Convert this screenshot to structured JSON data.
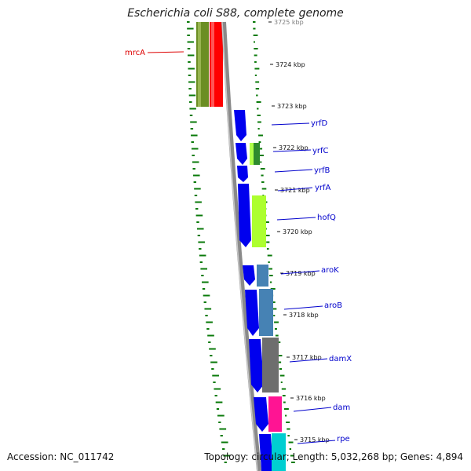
{
  "title": "Escherichia coli S88, complete genome",
  "accession": "Accession: NC_011742",
  "summary": "Topology: circular; Length: 5,032,268 bp; Genes: 4,894",
  "colors": {
    "forward_gene": "#0000ee",
    "label_line": "#0000cc",
    "highlight_label": "#dd0000",
    "backbone": "#8a8a8a",
    "gc_ticks": "#0a7a0a"
  },
  "position_ticks": [
    "3725 kbp",
    "3724 kbp",
    "3723 kbp",
    "3722 kbp",
    "3721 kbp",
    "3720 kbp",
    "3719 kbp",
    "3718 kbp",
    "3717 kbp",
    "3716 kbp",
    "3715 kbp"
  ],
  "gene_labels": [
    "mrcA",
    "yrfD",
    "yrfC",
    "yrfB",
    "yrfA",
    "hofQ",
    "aroK",
    "aroB",
    "damX",
    "dam",
    "rpe"
  ]
}
